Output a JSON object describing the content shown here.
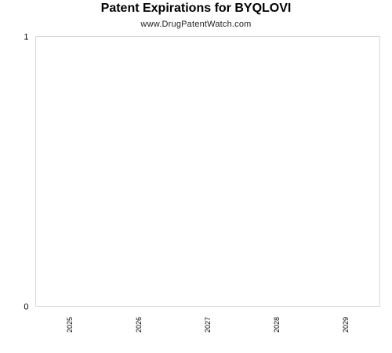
{
  "chart_data": {
    "type": "bar",
    "title": "Patent Expirations for BYQLOVI",
    "subtitle": "www.DrugPatentWatch.com",
    "categories": [
      "2025",
      "2026",
      "2027",
      "2028",
      "2029"
    ],
    "values": [
      0,
      0,
      0,
      0,
      0
    ],
    "ylim": [
      0,
      1
    ],
    "yticks": [
      "0",
      "1"
    ],
    "xlabel": "",
    "ylabel": "",
    "grid": false,
    "colors": {
      "frame": "#d9d9d9",
      "text": "#000000"
    }
  }
}
